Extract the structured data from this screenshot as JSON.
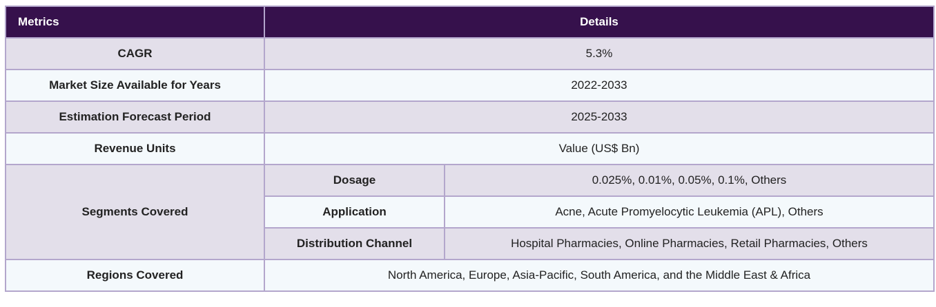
{
  "header": {
    "metrics": "Metrics",
    "details": "Details"
  },
  "rows": {
    "cagr": {
      "label": "CAGR",
      "value": "5.3%"
    },
    "market_size": {
      "label": "Market Size Available for Years",
      "value": "2022-2033"
    },
    "forecast": {
      "label": "Estimation Forecast Period",
      "value": "2025-2033"
    },
    "revenue_units": {
      "label": "Revenue Units",
      "value": "Value (US$ Bn)"
    },
    "segments": {
      "label": "Segments Covered",
      "items": [
        {
          "label": "Dosage",
          "value": "0.025%, 0.01%, 0.05%, 0.1%, Others"
        },
        {
          "label": "Application",
          "value": "Acne, Acute Promyelocytic Leukemia (APL), Others"
        },
        {
          "label": "Distribution Channel",
          "value": "Hospital Pharmacies, Online Pharmacies, Retail Pharmacies, Others"
        }
      ]
    },
    "regions": {
      "label": "Regions Covered",
      "value": "North America, Europe, Asia-Pacific, South America, and the Middle East & Africa"
    }
  }
}
